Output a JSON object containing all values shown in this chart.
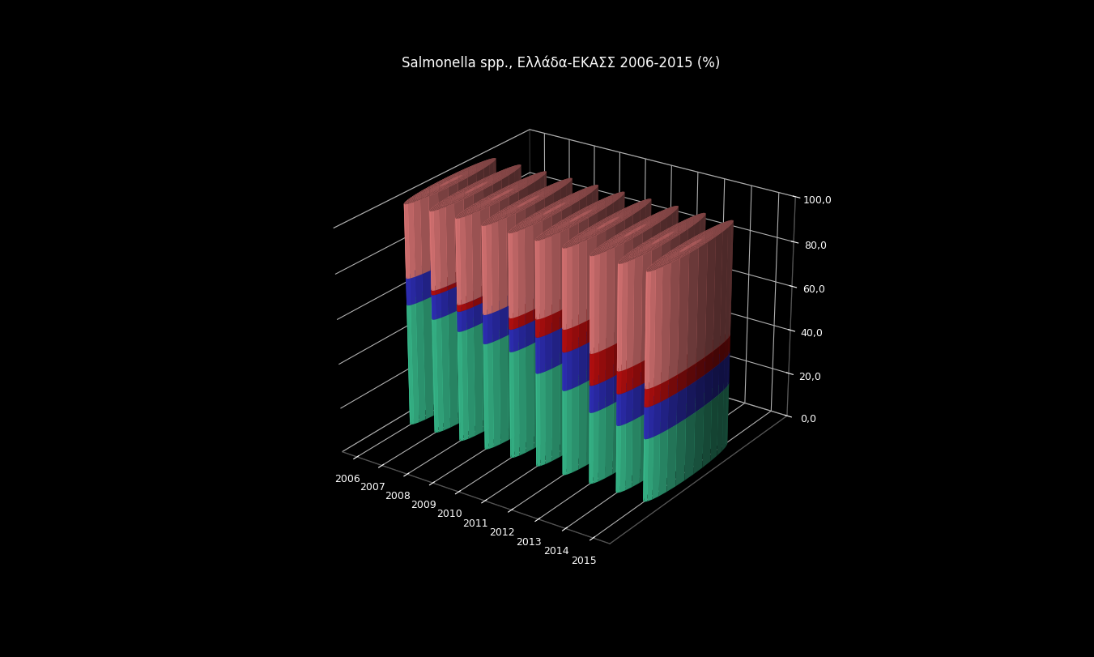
{
  "years": [
    "2006",
    "2007",
    "2008",
    "2009",
    "2010",
    "2011",
    "2012",
    "2013",
    "2014",
    "2015"
  ],
  "segments": {
    "green": [
      55,
      52,
      50,
      48,
      48,
      42,
      38,
      32,
      30,
      28
    ],
    "blue": [
      12,
      11,
      9,
      13,
      10,
      16,
      17,
      12,
      14,
      14
    ],
    "red": [
      0,
      2,
      3,
      0,
      5,
      8,
      10,
      14,
      10,
      8
    ],
    "pink": [
      33,
      35,
      38,
      39,
      37,
      34,
      35,
      42,
      46,
      50
    ]
  },
  "colors": {
    "green": "#3dcc99",
    "blue": "#3333cc",
    "red": "#cc1111",
    "pink": "#f08080"
  },
  "background_color": "#000000",
  "title": "Salmonella spp., Ελλάδα-ΕΚΑΣΣ 2006-2015 (%)",
  "ylabel": "%",
  "ylim": [
    0,
    100
  ],
  "bar_width": 0.6,
  "figsize": [
    13.51,
    8.11
  ]
}
